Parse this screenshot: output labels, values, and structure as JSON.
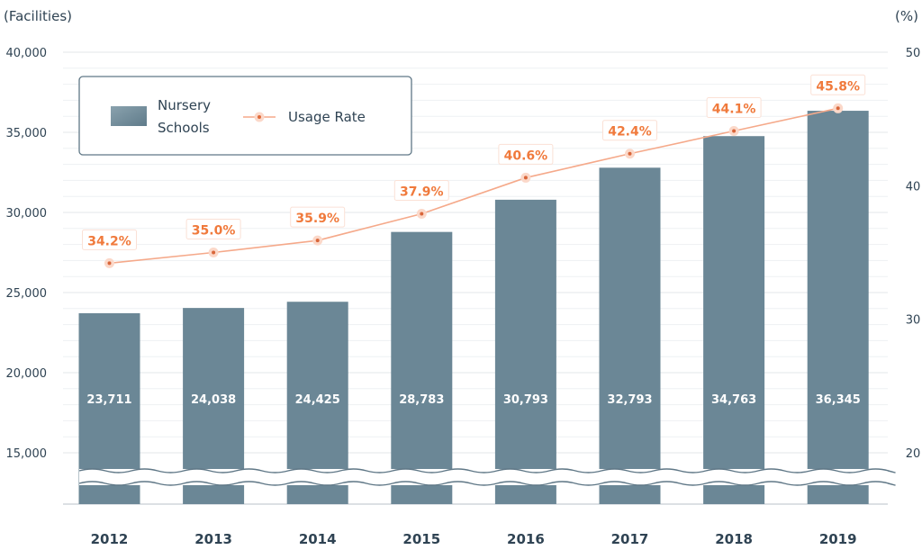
{
  "chart_data": {
    "type": "bar",
    "left_axis_unit": "(Facilities)",
    "right_axis_unit": "(%)",
    "categories": [
      "2012",
      "2013",
      "2014",
      "2015",
      "2016",
      "2017",
      "2018",
      "2019"
    ],
    "series": [
      {
        "name": "Nursery Schools",
        "type": "bar",
        "axis": "left",
        "values": [
          23711,
          24038,
          24425,
          28783,
          30793,
          32793,
          34763,
          36345
        ],
        "labels": [
          "23,711",
          "24,038",
          "24,425",
          "28,783",
          "30,793",
          "32,793",
          "34,763",
          "36,345"
        ]
      },
      {
        "name": "Usage Rate",
        "type": "line",
        "axis": "right",
        "values": [
          34.2,
          35.0,
          35.9,
          37.9,
          40.6,
          42.4,
          44.1,
          45.8
        ],
        "labels": [
          "34.2%",
          "35.0%",
          "35.9%",
          "37.9%",
          "40.6%",
          "42.4%",
          "44.1%",
          "45.8%"
        ]
      }
    ],
    "left_axis": {
      "ticks": [
        15000,
        20000,
        25000,
        30000,
        35000,
        40000
      ],
      "tick_labels": [
        "15,000",
        "20,000",
        "25,000",
        "30,000",
        "35,000",
        "40,000"
      ],
      "range": [
        15000,
        40000
      ],
      "axis_break": true
    },
    "right_axis": {
      "ticks": [
        20,
        30,
        40,
        50
      ],
      "tick_labels": [
        "20",
        "30",
        "40",
        "50"
      ],
      "range": [
        20,
        50
      ]
    },
    "legend": {
      "position": "top-left",
      "bar_label_lines": [
        "Nursery",
        "Schools"
      ],
      "line_label": "Usage Rate"
    },
    "grid": true,
    "colors": {
      "bar": "#6b8796",
      "line": "#f5a98a",
      "rate_label": "#f07a3c",
      "text": "#2f4353",
      "grid": "#e3e7ea"
    }
  }
}
